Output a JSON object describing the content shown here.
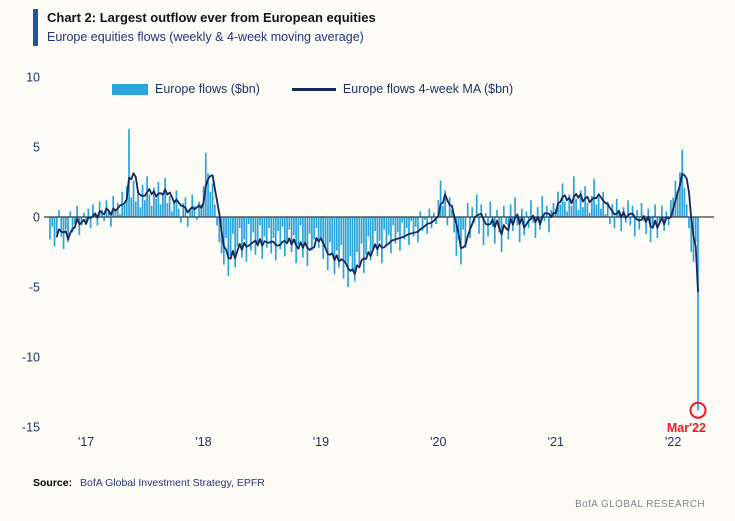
{
  "legend": {
    "items": [
      "Europe flows ($bn)",
      "Europe flows 4-week MA ($bn)"
    ]
  },
  "footer": {
    "source_label": "Source:",
    "source_text": "BofA Global Investment Strategy, EPFR",
    "brand": "BofA GLOBAL RESEARCH"
  },
  "colors": {
    "background": "#FCFBF5",
    "bar": "#29A5DC",
    "ma_line": "#16275C",
    "axis_text": "#1F3266",
    "zero_line": "#3A3A3A",
    "accent_bar": "#1C57A5",
    "annotation_red": "#ED1C24",
    "brand_text": "#83838F"
  },
  "chart_data": {
    "type": "bar",
    "title": "Chart 2: Largest outflow ever from European equities",
    "subtitle": "Europe equities flows (weekly & 4-week moving average)",
    "ylabel": "$bn",
    "ylim": [
      -15,
      10
    ],
    "yticks": [
      10,
      5,
      0,
      -5,
      -10,
      -15
    ],
    "grid": false,
    "legend_position": "top",
    "x_tick_labels": [
      "'17",
      "'18",
      "'19",
      "'20",
      "'21",
      "'22"
    ],
    "x_tick_indices": [
      16,
      68,
      120,
      172,
      224,
      276
    ],
    "annotation": {
      "label": "Mar'22",
      "x_index": 287,
      "y": -13.8,
      "color": "#ED1C24"
    },
    "series": [
      {
        "name": "Europe flows ($bn)",
        "type": "bar",
        "color": "#29A5DC",
        "values": [
          -1.6,
          -0.7,
          -2.1,
          -1.2,
          0.5,
          -1.4,
          -2.3,
          -0.9,
          -1.8,
          0.4,
          -1.1,
          -0.5,
          0.8,
          -1.3,
          -0.6,
          0.3,
          -0.4,
          0.6,
          -0.8,
          0.9,
          0.3,
          -0.6,
          1.1,
          0.5,
          -0.3,
          1.2,
          0.4,
          -0.7,
          1.5,
          0.6,
          1.0,
          0.2,
          1.8,
          0.9,
          2.2,
          6.3,
          1.4,
          2.6,
          1.1,
          1.9,
          0.7,
          2.3,
          1.2,
          2.9,
          1.6,
          0.8,
          2.1,
          1.3,
          2.5,
          0.9,
          1.7,
          2.8,
          1.0,
          1.5,
          0.4,
          1.2,
          1.9,
          0.6,
          -0.4,
          1.0,
          1.4,
          -0.7,
          0.5,
          1.6,
          0.8,
          -0.2,
          1.1,
          0.9,
          2.2,
          4.6,
          3.1,
          1.8,
          2.4,
          0.9,
          -0.6,
          -1.8,
          -2.6,
          -3.4,
          -1.5,
          -4.2,
          -2.8,
          -1.2,
          -3.6,
          -2.1,
          -0.8,
          -2.9,
          -1.6,
          -3.2,
          -0.5,
          -2.4,
          -1.1,
          -2.7,
          -1.9,
          -0.6,
          -3.0,
          -1.4,
          -2.2,
          -0.8,
          -2.6,
          -1.5,
          -3.1,
          -1.0,
          -2.3,
          -0.7,
          -2.8,
          -1.7,
          -0.9,
          -2.5,
          -1.3,
          -3.3,
          -2.0,
          -0.6,
          -2.9,
          -1.8,
          -3.5,
          -1.2,
          -2.4,
          -1.6,
          -0.8,
          -2.2,
          -1.5,
          -3.0,
          -2.2,
          -3.8,
          -1.8,
          -2.6,
          -4.1,
          -2.4,
          -3.6,
          -2.0,
          -4.4,
          -3.2,
          -5.0,
          -2.8,
          -3.9,
          -4.6,
          -2.5,
          -3.4,
          -1.9,
          -4.0,
          -2.7,
          -1.4,
          -3.1,
          -2.3,
          -1.0,
          -2.8,
          -1.7,
          -3.3,
          -0.9,
          -2.1,
          -1.3,
          -2.6,
          -0.6,
          -1.9,
          -1.1,
          -2.4,
          -0.4,
          -1.6,
          -0.8,
          -2.0,
          -0.3,
          -1.4,
          -0.7,
          -1.8,
          0.4,
          -1.0,
          -0.2,
          -1.2,
          0.6,
          -0.8,
          0.3,
          -0.5,
          1.2,
          2.6,
          0.8,
          1.9,
          -0.6,
          1.4,
          0.5,
          -1.1,
          -2.8,
          -1.6,
          -3.4,
          -0.9,
          -2.2,
          1.0,
          -1.5,
          0.7,
          -0.4,
          1.6,
          -1.2,
          0.9,
          -2.0,
          0.3,
          -1.4,
          1.1,
          -0.7,
          -1.9,
          0.5,
          -1.1,
          -2.5,
          0.8,
          -0.5,
          -1.6,
          0.9,
          -1.0,
          1.4,
          -0.6,
          -1.8,
          0.6,
          -1.3,
          0.4,
          -0.8,
          1.2,
          -0.4,
          -1.5,
          0.7,
          -0.9,
          1.5,
          -0.3,
          0.8,
          -1.1,
          0.5,
          1.0,
          0.6,
          1.8,
          0.9,
          2.4,
          1.1,
          0.4,
          1.6,
          0.8,
          2.9,
          1.3,
          0.5,
          1.9,
          0.7,
          2.2,
          1.0,
          0.3,
          1.5,
          2.7,
          0.9,
          1.4,
          0.6,
          1.8,
          0.2,
          1.1,
          -0.5,
          0.9,
          -0.8,
          1.3,
          0.4,
          -1.0,
          0.7,
          -0.4,
          1.2,
          -0.6,
          0.8,
          -1.4,
          0.5,
          -0.9,
          1.0,
          -0.3,
          -1.2,
          0.6,
          -1.8,
          -0.7,
          0.9,
          -1.5,
          -0.4,
          0.8,
          -1.0,
          0.4,
          -0.6,
          1.2,
          1.4,
          2.6,
          1.8,
          3.2,
          4.8,
          2.1,
          0.9,
          -0.8,
          -2.5,
          -3.2,
          -1.8,
          -13.8
        ]
      },
      {
        "name": "Europe flows 4-week MA ($bn)",
        "type": "line",
        "color": "#16275C",
        "derived_from": "4-week trailing moving average of bar series"
      }
    ]
  }
}
